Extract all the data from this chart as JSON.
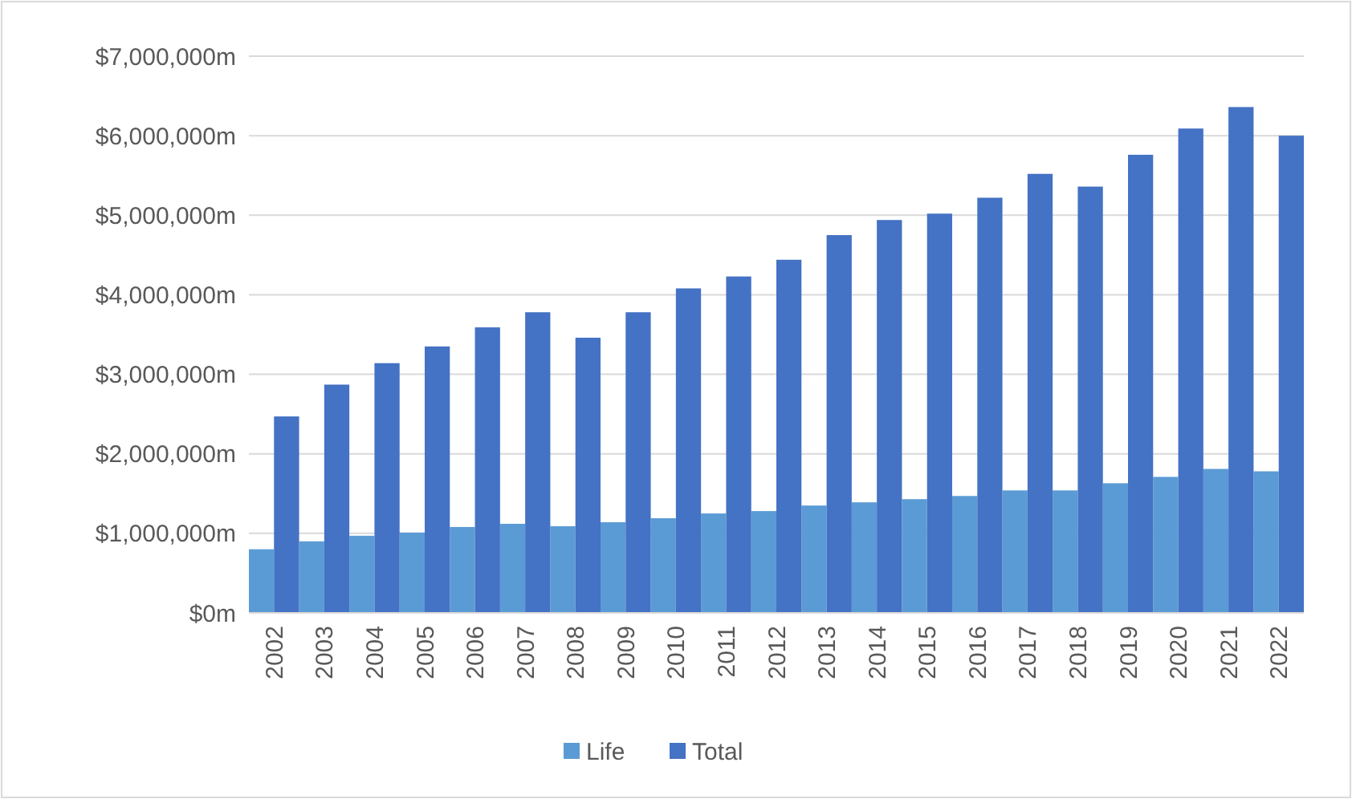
{
  "chart_data": {
    "type": "bar",
    "categories": [
      "2002",
      "2003",
      "2004",
      "2005",
      "2006",
      "2007",
      "2008",
      "2009",
      "2010",
      "2011",
      "2012",
      "2013",
      "2014",
      "2015",
      "2016",
      "2017",
      "2018",
      "2019",
      "2020",
      "2021",
      "2022"
    ],
    "series": [
      {
        "name": "Life",
        "color": "#5b9bd5",
        "values": [
          800000,
          900000,
          970000,
          1010000,
          1080000,
          1120000,
          1090000,
          1140000,
          1190000,
          1250000,
          1280000,
          1350000,
          1390000,
          1430000,
          1470000,
          1540000,
          1540000,
          1630000,
          1710000,
          1810000,
          1780000
        ]
      },
      {
        "name": "Total",
        "color": "#4472c4",
        "values": [
          2470000,
          2870000,
          3140000,
          3350000,
          3590000,
          3780000,
          3460000,
          3780000,
          4080000,
          4230000,
          4440000,
          4750000,
          4940000,
          5020000,
          5220000,
          5520000,
          5360000,
          5760000,
          6090000,
          6360000,
          6000000
        ]
      }
    ],
    "ylim": [
      0,
      7000000
    ],
    "yticks": [
      {
        "value": 0,
        "label": "$0m"
      },
      {
        "value": 1000000,
        "label": "$1,000,000m"
      },
      {
        "value": 2000000,
        "label": "$2,000,000m"
      },
      {
        "value": 3000000,
        "label": "$3,000,000m"
      },
      {
        "value": 4000000,
        "label": "$4,000,000m"
      },
      {
        "value": 5000000,
        "label": "$5,000,000m"
      },
      {
        "value": 6000000,
        "label": "$6,000,000m"
      },
      {
        "value": 7000000,
        "label": "$7,000,000m"
      }
    ],
    "grid": "y",
    "legend": "bottom"
  }
}
